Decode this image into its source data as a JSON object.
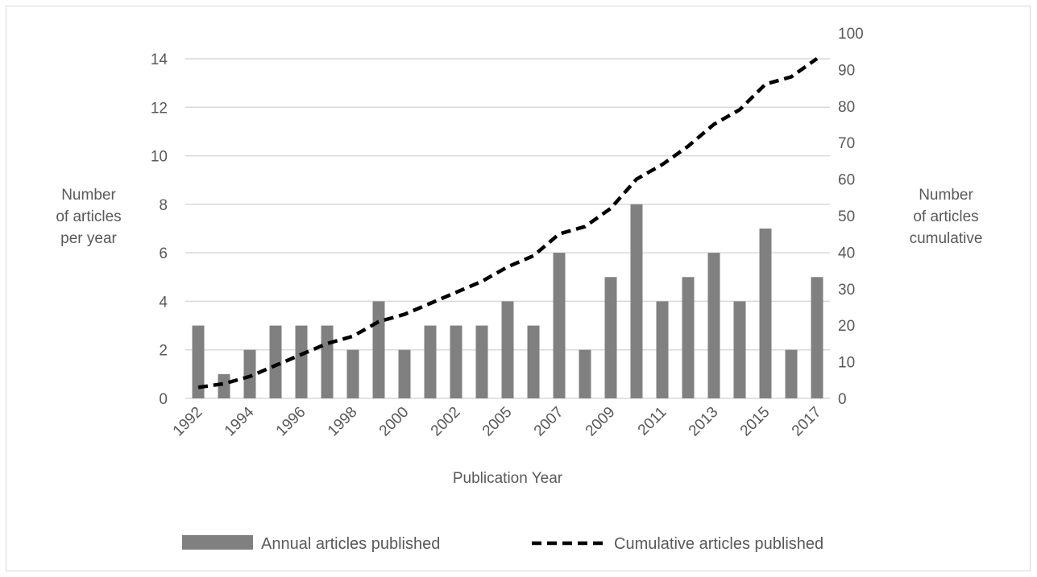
{
  "chart_data": {
    "type": "bar",
    "title": "",
    "xlabel": "Publication Year",
    "ylabel_left": "Number of articles per year",
    "ylabel_left_lines": [
      "Number",
      "of articles",
      "per year"
    ],
    "ylabel_right": "Number of articles cumulative",
    "ylabel_right_lines": [
      "Number",
      "of articles",
      "cumulative"
    ],
    "ylim_left": [
      0,
      14
    ],
    "yticks_left": [
      0,
      2,
      4,
      6,
      8,
      10,
      12,
      14
    ],
    "ylim_right": [
      0,
      100
    ],
    "yticks_right": [
      0,
      10,
      20,
      30,
      40,
      50,
      60,
      70,
      80,
      90,
      100
    ],
    "categories": [
      "1992",
      "1993",
      "1994",
      "1995",
      "1996",
      "1997",
      "1998",
      "1999",
      "2000",
      "2001",
      "2002",
      "2003",
      "2005",
      "2006",
      "2007",
      "2008",
      "2009",
      "2010",
      "2011",
      "2012",
      "2013",
      "2014",
      "2015",
      "2016",
      "2017"
    ],
    "tick_labels": [
      "1992",
      "",
      "1994",
      "",
      "1996",
      "",
      "1998",
      "",
      "2000",
      "",
      "2002",
      "",
      "2005",
      "",
      "2007",
      "",
      "2009",
      "",
      "2011",
      "",
      "2013",
      "",
      "2015",
      "",
      "2017"
    ],
    "grid": true,
    "legend_position": "bottom",
    "series": [
      {
        "name": "Annual articles published",
        "type": "bar",
        "axis": "left",
        "color": "#808080",
        "values": [
          3,
          1,
          2,
          3,
          3,
          3,
          2,
          4,
          2,
          3,
          3,
          3,
          4,
          3,
          6,
          2,
          5,
          8,
          4,
          5,
          6,
          4,
          7,
          2,
          5
        ]
      },
      {
        "name": "Cumulative articles published",
        "type": "line",
        "axis": "right",
        "style": "dashed",
        "color": "#000000",
        "values": [
          3,
          4,
          6,
          9,
          12,
          15,
          17,
          21,
          23,
          26,
          29,
          32,
          36,
          39,
          45,
          47,
          52,
          60,
          64,
          69,
          75,
          79,
          86,
          88,
          93
        ]
      }
    ]
  }
}
